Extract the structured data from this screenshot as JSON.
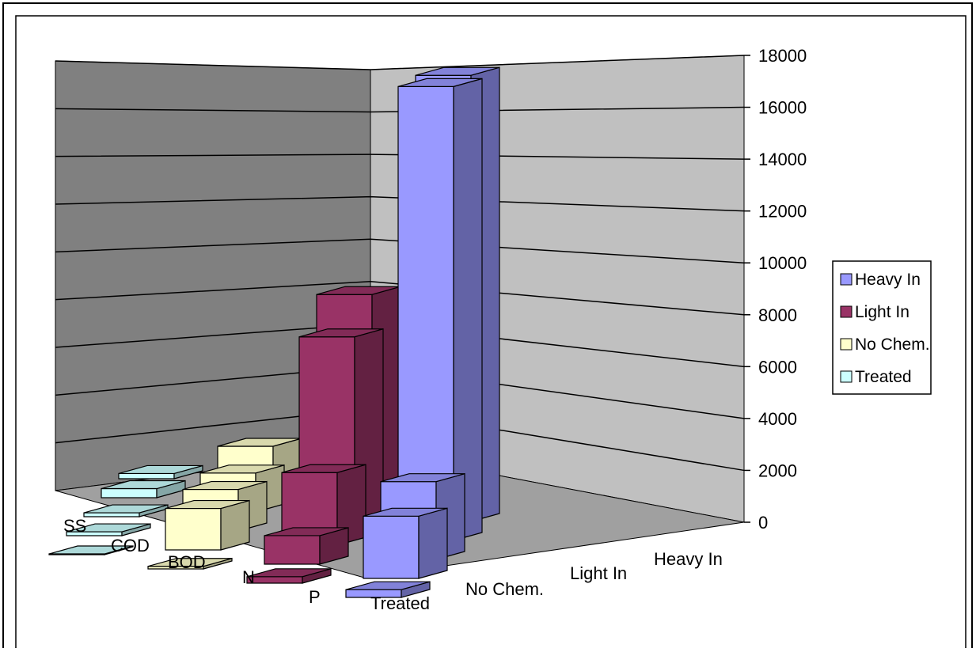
{
  "chart_data": {
    "type": "bar",
    "subtype": "3d-column",
    "title": "",
    "xlabel": "",
    "ylabel": "",
    "ylim": [
      0,
      18000
    ],
    "yticks": [
      "0",
      "2000",
      "4000",
      "6000",
      "8000",
      "10000",
      "12000",
      "14000",
      "16000",
      "18000"
    ],
    "categories": [
      "SS",
      "COD",
      "BOD",
      "N",
      "P"
    ],
    "series_axis_labels": [
      "Treated",
      "No Chem.",
      "Light In",
      "Heavy In"
    ],
    "legend_entries": [
      "Heavy In",
      "Light In",
      "No Chem.",
      "Treated"
    ],
    "legend_position": "right",
    "grid": true,
    "series": [
      {
        "name": "Treated",
        "color": "#CCFFFF",
        "values": [
          200,
          350,
          150,
          150,
          30
        ]
      },
      {
        "name": "No Chem.",
        "color": "#FFFFCC",
        "values": [
          1800,
          1500,
          1600,
          1600,
          100
        ]
      },
      {
        "name": "Light In",
        "color": "#993366",
        "values": [
          8200,
          7300,
          2800,
          1100,
          250
        ]
      },
      {
        "name": "Heavy In",
        "color": "#9999FF",
        "values": [
          17200,
          17500,
          3000,
          2400,
          300
        ]
      }
    ]
  }
}
